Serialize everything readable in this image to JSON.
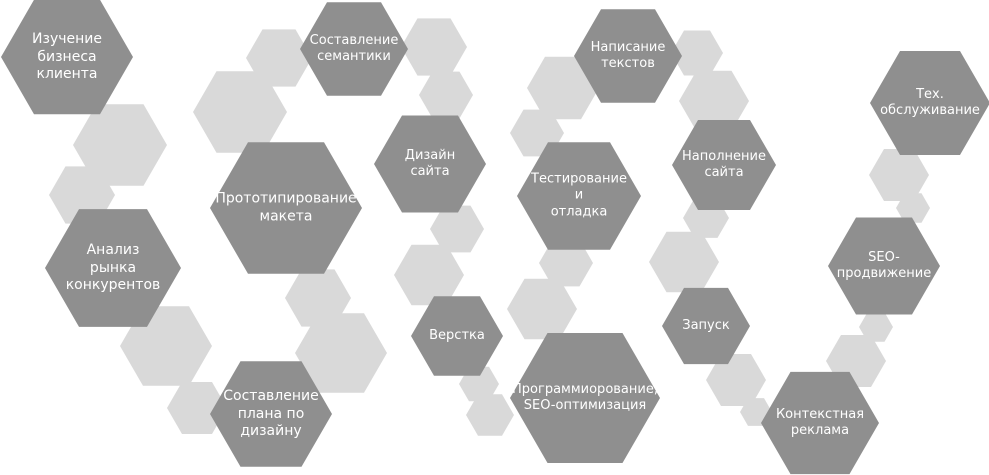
{
  "colors": {
    "background": "#ffffff",
    "step_hex": "#8f8f8f",
    "deco_hex": "#d9d9d9",
    "label_text": "#ffffff"
  },
  "steps": [
    {
      "id": "step-business-study",
      "label": "Изучение\nбизнеса\nклиента"
    },
    {
      "id": "step-market-analysis",
      "label": "Анализ\nрынка\nконкурентов"
    },
    {
      "id": "step-design-plan",
      "label": "Составление\nплана по\nдизайну"
    },
    {
      "id": "step-prototyping",
      "label": "Прототипирование\nмакета"
    },
    {
      "id": "step-semantics",
      "label": "Составление\nсемантики"
    },
    {
      "id": "step-site-design",
      "label": "Дизайн\nсайта"
    },
    {
      "id": "step-layout",
      "label": "Верстка"
    },
    {
      "id": "step-programming",
      "label": "Программиорование,\nSEO-оптимизация"
    },
    {
      "id": "step-testing",
      "label": "Тестирование\nи\nотладка"
    },
    {
      "id": "step-copywriting",
      "label": "Написание\nтекстов"
    },
    {
      "id": "step-content",
      "label": "Наполнение\nсайта"
    },
    {
      "id": "step-launch",
      "label": "Запуск"
    },
    {
      "id": "step-context-ads",
      "label": "Контекстная\nреклама"
    },
    {
      "id": "step-seo",
      "label": "SEO-\nпродвижение"
    },
    {
      "id": "step-maintenance",
      "label": "Тех.\nобслуживание"
    }
  ]
}
